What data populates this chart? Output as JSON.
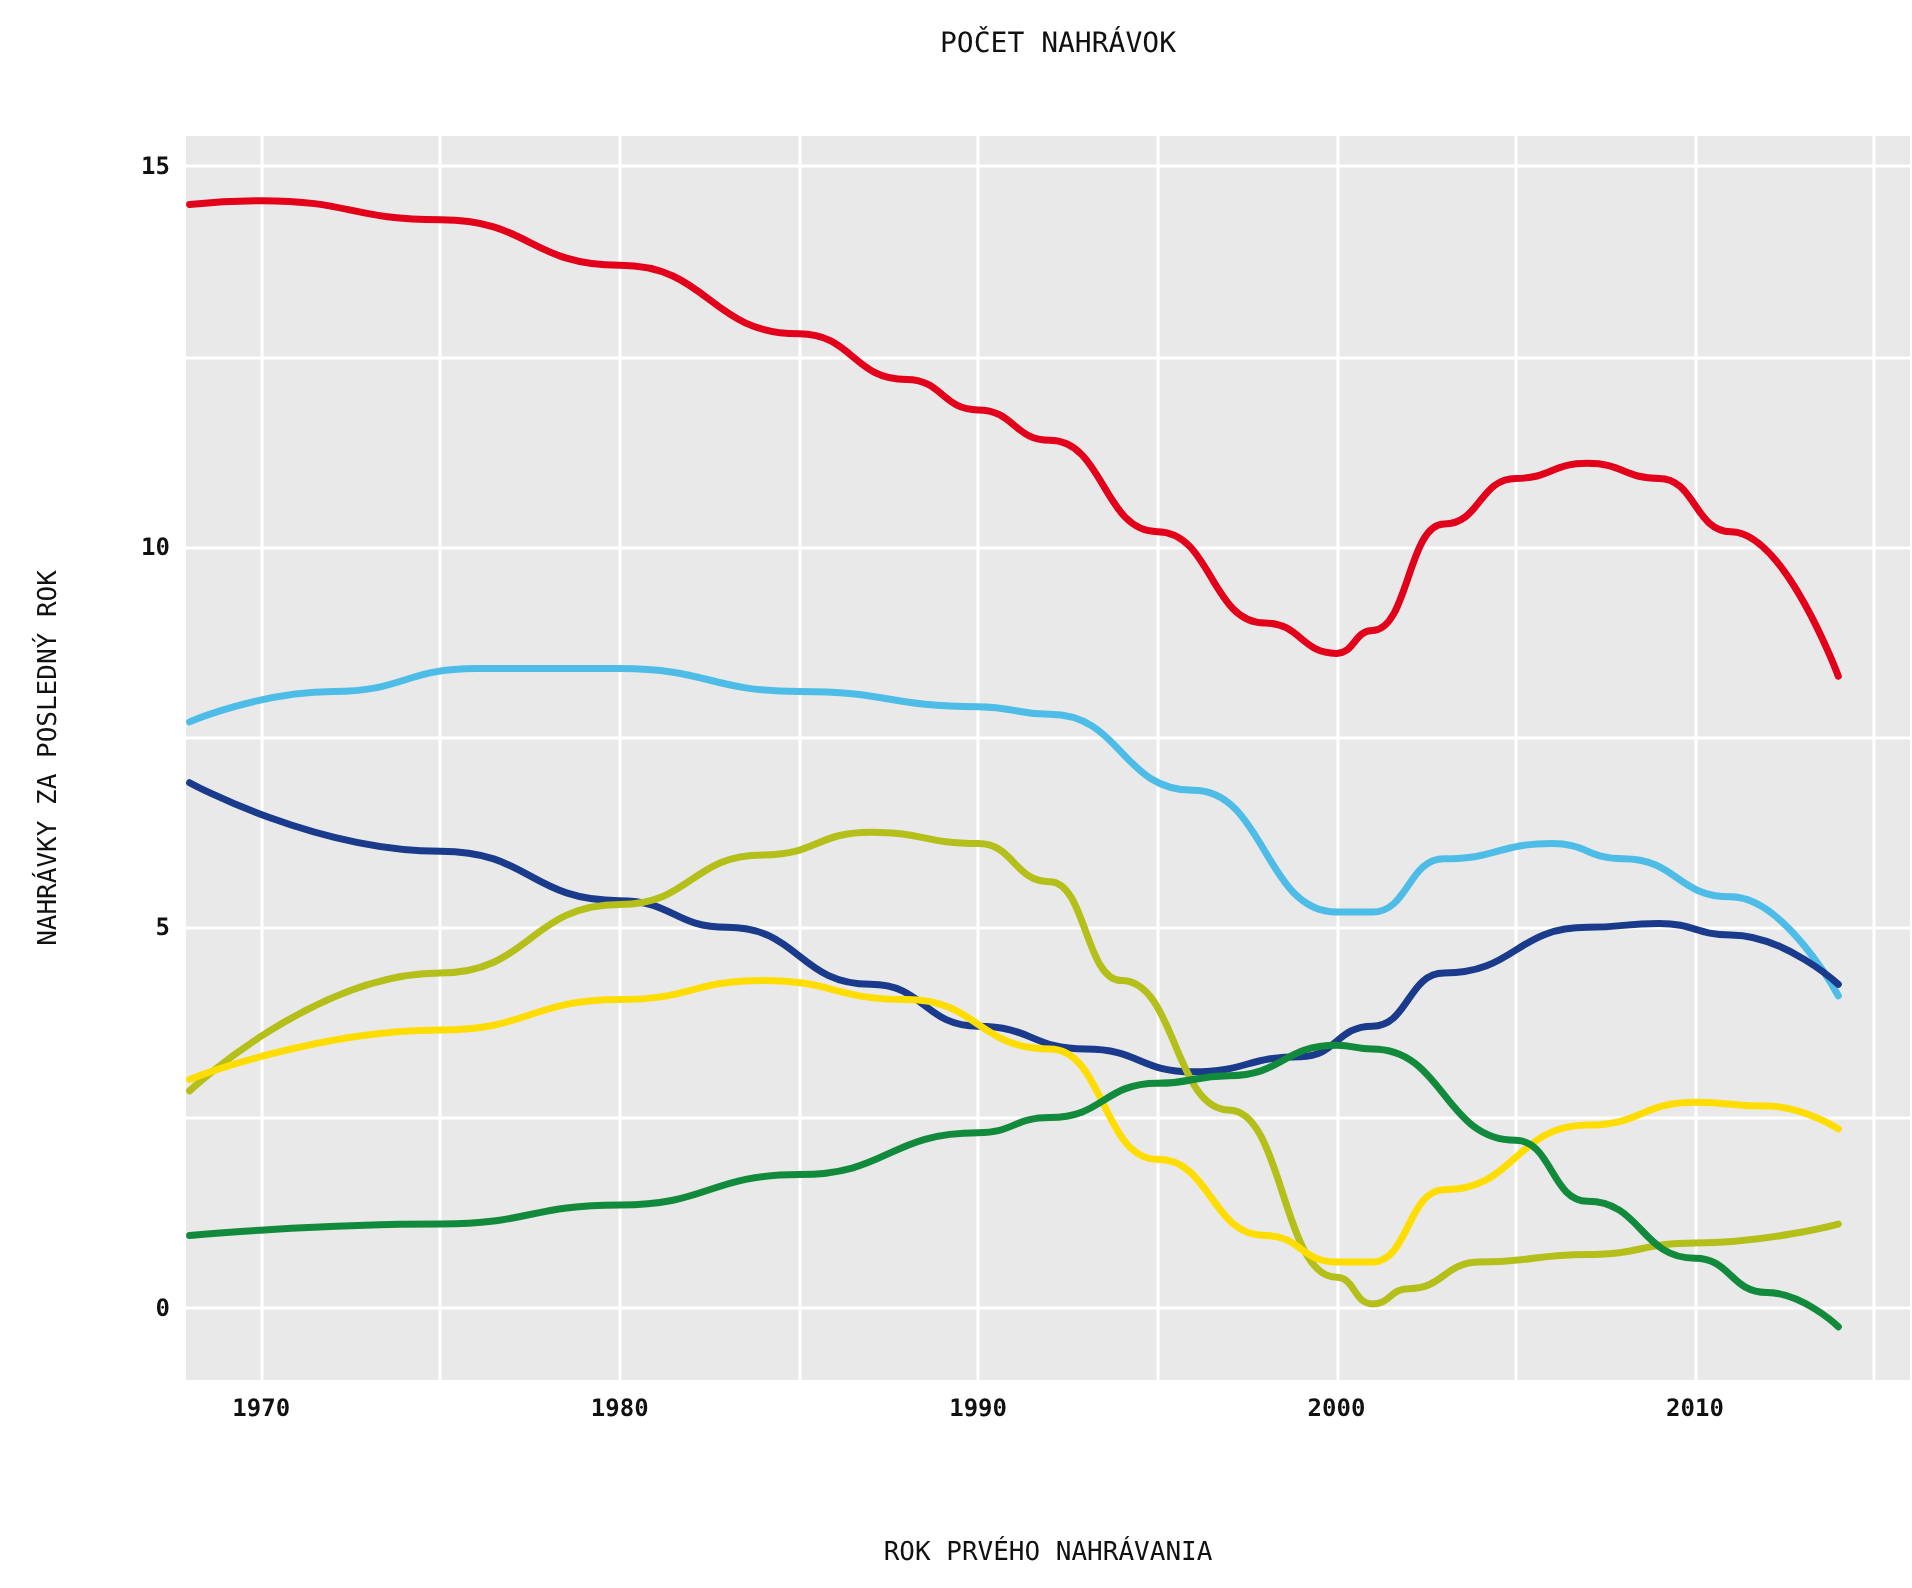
{
  "chart_data": {
    "type": "line",
    "title": "POČET NAHRÁVOK",
    "xlabel": "ROK PRVÉHO NAHRÁVANIA",
    "ylabel": "NAHRÁVKY ZA POSLEDNÝ ROK",
    "xlim": [
      1967.9,
      2016
    ],
    "ylim": [
      -0.95,
      15.4
    ],
    "xticks": [
      1970,
      {
        "value": 1975,
        "label": null
      },
      1980,
      {
        "value": 1985,
        "label": null
      },
      1990,
      {
        "value": 1995,
        "label": null
      },
      2000,
      {
        "value": 2005,
        "label": null
      },
      2010,
      {
        "value": 2015,
        "label": null
      }
    ],
    "yticks": [
      0,
      {
        "value": 2.5,
        "label": null
      },
      5,
      {
        "value": 7.5,
        "label": null
      },
      10,
      {
        "value": 12.5,
        "label": null
      },
      15
    ],
    "grid": true,
    "marker": "none",
    "line_style": "solid",
    "series": [
      {
        "color": "#e2001a",
        "x": [
          1968,
          1970,
          1975,
          1980,
          1985,
          1988,
          1990,
          1992,
          1995,
          1998,
          2000,
          2001,
          2003,
          2005,
          2007,
          2009,
          2011,
          2014
        ],
        "values": [
          14.5,
          14.55,
          14.3,
          13.7,
          12.8,
          12.2,
          11.8,
          11.4,
          10.2,
          9.0,
          8.6,
          8.9,
          10.3,
          10.9,
          11.1,
          10.9,
          10.2,
          8.3
        ]
      },
      {
        "color": "#4dbde8",
        "x": [
          1968,
          1972,
          1976,
          1980,
          1985,
          1990,
          1992,
          1996,
          2000,
          2001,
          2003,
          2006,
          2008,
          2011,
          2014
        ],
        "values": [
          7.7,
          8.1,
          8.4,
          8.4,
          8.1,
          7.9,
          7.8,
          6.8,
          5.2,
          5.2,
          5.9,
          6.1,
          5.9,
          5.4,
          4.1
        ]
      },
      {
        "color": "#1a3a8c",
        "x": [
          1968,
          1975,
          1980,
          1983,
          1987,
          1990,
          1993,
          1996,
          1999,
          2001,
          2003,
          2007,
          2009,
          2011,
          2014
        ],
        "values": [
          6.9,
          6.0,
          5.35,
          5.0,
          4.25,
          3.7,
          3.4,
          3.1,
          3.3,
          3.7,
          4.4,
          5.0,
          5.05,
          4.9,
          4.25
        ]
      },
      {
        "color": "#b5bf1a",
        "x": [
          1968,
          1975,
          1980,
          1984,
          1987,
          1990,
          1992,
          1994,
          1997,
          2000,
          2001,
          2002,
          2004,
          2007,
          2010,
          2014
        ],
        "values": [
          2.85,
          4.4,
          5.3,
          5.95,
          6.25,
          6.1,
          5.6,
          4.3,
          2.6,
          0.4,
          0.05,
          0.25,
          0.6,
          0.7,
          0.85,
          1.1
        ]
      },
      {
        "color": "#ffdd00",
        "x": [
          1968,
          1975,
          1980,
          1984,
          1988,
          1992,
          1995,
          1998,
          2000,
          2001,
          2003,
          2007,
          2010,
          2012,
          2014
        ],
        "values": [
          3.0,
          3.65,
          4.05,
          4.3,
          4.05,
          3.4,
          1.95,
          0.95,
          0.6,
          0.6,
          1.55,
          2.4,
          2.7,
          2.65,
          2.35
        ]
      },
      {
        "color": "#128a3c",
        "x": [
          1968,
          1975,
          1980,
          1985,
          1990,
          1992,
          1995,
          1997,
          2000,
          2001,
          2005,
          2007,
          2010,
          2012,
          2014
        ],
        "values": [
          0.95,
          1.1,
          1.35,
          1.75,
          2.3,
          2.5,
          2.95,
          3.05,
          3.45,
          3.4,
          2.2,
          1.4,
          0.65,
          0.2,
          -0.25
        ]
      }
    ]
  }
}
